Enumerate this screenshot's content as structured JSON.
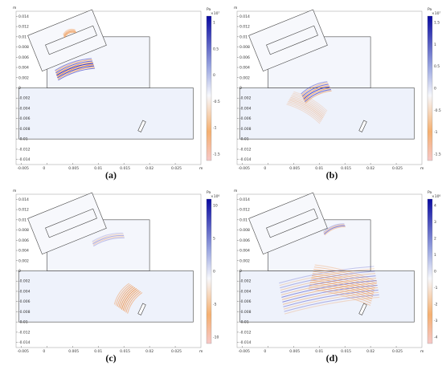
{
  "panels": [
    {
      "id": "a",
      "caption": "(a)",
      "unit": "Pa",
      "scale": "×10⁷",
      "cbar_ticks": [
        "1",
        "0.5",
        "0",
        "-0.5",
        "-1",
        "-1.5"
      ],
      "y_ticks": [
        "0.014",
        "0.012",
        "0.01",
        "0.008",
        "0.006",
        "0.004",
        "0.002",
        "0",
        "-0.002",
        "-0.004",
        "-0.006",
        "-0.008",
        "-0.01",
        "-0.012",
        "-0.014"
      ],
      "x_ticks": [
        "-0.005",
        "0",
        "0.005",
        "0.01",
        "0.015",
        "0.02",
        "0.025"
      ],
      "x_unit": "m",
      "y_unit": "m"
    },
    {
      "id": "b",
      "caption": "(b)",
      "unit": "Pa",
      "scale": "×10⁷",
      "cbar_ticks": [
        "1.5",
        "1",
        "0.5",
        "0",
        "-0.5",
        "-1",
        "-1.5"
      ],
      "y_ticks": [
        "0.014",
        "0.012",
        "0.01",
        "0.008",
        "0.006",
        "0.004",
        "0.002",
        "0",
        "-0.002",
        "-0.004",
        "-0.006",
        "-0.008",
        "-0.01",
        "-0.012",
        "-0.014"
      ],
      "x_ticks": [
        "-0.005",
        "0",
        "0.005",
        "0.01",
        "0.015",
        "0.02",
        "0.025"
      ],
      "x_unit": "m",
      "y_unit": "m"
    },
    {
      "id": "c",
      "caption": "(c)",
      "unit": "Pa",
      "scale": "×10⁶",
      "cbar_ticks": [
        "10",
        "5",
        "0",
        "-5",
        "-10"
      ],
      "y_ticks": [
        "0.014",
        "0.012",
        "0.01",
        "0.008",
        "0.006",
        "0.004",
        "0.002",
        "0",
        "-0.002",
        "-0.004",
        "-0.006",
        "-0.008",
        "-0.01",
        "-0.012",
        "-0.014"
      ],
      "x_ticks": [
        "-0.005",
        "0",
        "0.005",
        "0.01",
        "0.015",
        "0.02",
        "0.025"
      ],
      "x_unit": "m",
      "y_unit": "m"
    },
    {
      "id": "d",
      "caption": "(d)",
      "unit": "Pa",
      "scale": "×10⁶",
      "cbar_ticks": [
        "4",
        "3",
        "2",
        "1",
        "0",
        "-1",
        "-2",
        "-3",
        "-4"
      ],
      "y_ticks": [
        "0.014",
        "0.012",
        "0.01",
        "0.008",
        "0.006",
        "0.004",
        "0.002",
        "0",
        "-0.002",
        "-0.004",
        "-0.006",
        "-0.008",
        "-0.01",
        "-0.012",
        "-0.014"
      ],
      "x_ticks": [
        "-0.005",
        "0",
        "0.005",
        "0.01",
        "0.015",
        "0.02",
        "0.025"
      ],
      "x_unit": "m",
      "y_unit": "m"
    }
  ],
  "colors": {
    "positive": "#1a1ab8",
    "negative": "#f08a3a",
    "background": "#eef2fb",
    "frame": "#444444"
  }
}
